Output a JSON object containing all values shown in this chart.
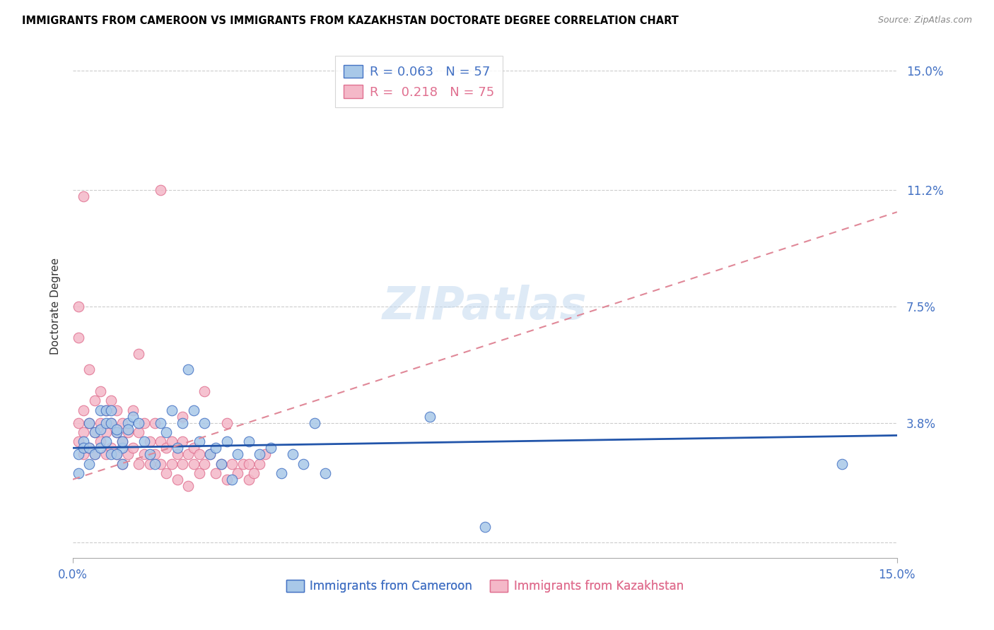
{
  "title": "IMMIGRANTS FROM CAMEROON VS IMMIGRANTS FROM KAZAKHSTAN DOCTORATE DEGREE CORRELATION CHART",
  "source": "Source: ZipAtlas.com",
  "ylabel": "Doctorate Degree",
  "xmin": 0.0,
  "xmax": 0.15,
  "ymin": -0.005,
  "ymax": 0.155,
  "yticks": [
    0.0,
    0.038,
    0.075,
    0.112,
    0.15
  ],
  "ytick_labels": [
    "",
    "3.8%",
    "7.5%",
    "11.2%",
    "15.0%"
  ],
  "xticks": [
    0.0,
    0.15
  ],
  "xtick_labels": [
    "0.0%",
    "15.0%"
  ],
  "legend_label1": "Immigrants from Cameroon",
  "legend_label2": "Immigrants from Kazakhstan",
  "color_cameroon_fill": "#A8C8E8",
  "color_cameroon_edge": "#4472C4",
  "color_kazakhstan_fill": "#F4B8C8",
  "color_kazakhstan_edge": "#E07090",
  "color_blue_line": "#2255AA",
  "color_pink_line": "#E08898",
  "color_axis_labels": "#4472C4",
  "background": "#FFFFFF",
  "cam_trend_x0": 0.0,
  "cam_trend_x1": 0.15,
  "cam_trend_y0": 0.03,
  "cam_trend_y1": 0.034,
  "kaz_trend_x0": 0.0,
  "kaz_trend_x1": 0.15,
  "kaz_trend_y0": 0.02,
  "kaz_trend_y1": 0.105,
  "cameroon_x": [
    0.001,
    0.002,
    0.003,
    0.001,
    0.003,
    0.002,
    0.004,
    0.005,
    0.003,
    0.004,
    0.005,
    0.006,
    0.005,
    0.006,
    0.007,
    0.006,
    0.007,
    0.008,
    0.007,
    0.008,
    0.009,
    0.008,
    0.009,
    0.01,
    0.009,
    0.01,
    0.011,
    0.012,
    0.013,
    0.014,
    0.015,
    0.016,
    0.017,
    0.018,
    0.019,
    0.02,
    0.021,
    0.022,
    0.023,
    0.024,
    0.025,
    0.026,
    0.027,
    0.028,
    0.029,
    0.03,
    0.032,
    0.034,
    0.036,
    0.038,
    0.04,
    0.042,
    0.044,
    0.046,
    0.065,
    0.075,
    0.14
  ],
  "cameroon_y": [
    0.028,
    0.032,
    0.038,
    0.022,
    0.025,
    0.03,
    0.035,
    0.042,
    0.03,
    0.028,
    0.036,
    0.038,
    0.03,
    0.042,
    0.038,
    0.032,
    0.028,
    0.035,
    0.042,
    0.036,
    0.03,
    0.028,
    0.032,
    0.038,
    0.025,
    0.036,
    0.04,
    0.038,
    0.032,
    0.028,
    0.025,
    0.038,
    0.035,
    0.042,
    0.03,
    0.038,
    0.055,
    0.042,
    0.032,
    0.038,
    0.028,
    0.03,
    0.025,
    0.032,
    0.02,
    0.028,
    0.032,
    0.028,
    0.03,
    0.022,
    0.028,
    0.025,
    0.038,
    0.022,
    0.04,
    0.005,
    0.025
  ],
  "kazakhstan_x": [
    0.001,
    0.001,
    0.001,
    0.002,
    0.002,
    0.002,
    0.003,
    0.003,
    0.003,
    0.004,
    0.004,
    0.004,
    0.005,
    0.005,
    0.005,
    0.006,
    0.006,
    0.006,
    0.007,
    0.007,
    0.007,
    0.008,
    0.008,
    0.008,
    0.009,
    0.009,
    0.009,
    0.01,
    0.01,
    0.011,
    0.011,
    0.012,
    0.012,
    0.013,
    0.013,
    0.014,
    0.014,
    0.015,
    0.015,
    0.016,
    0.016,
    0.017,
    0.017,
    0.018,
    0.018,
    0.019,
    0.019,
    0.02,
    0.02,
    0.021,
    0.021,
    0.022,
    0.022,
    0.023,
    0.023,
    0.024,
    0.025,
    0.026,
    0.027,
    0.028,
    0.029,
    0.03,
    0.031,
    0.032,
    0.033,
    0.034,
    0.035,
    0.012,
    0.016,
    0.02,
    0.024,
    0.028,
    0.032,
    0.001,
    0.002
  ],
  "kazakhstan_y": [
    0.032,
    0.038,
    0.065,
    0.028,
    0.035,
    0.042,
    0.03,
    0.038,
    0.055,
    0.028,
    0.035,
    0.045,
    0.032,
    0.038,
    0.048,
    0.028,
    0.035,
    0.042,
    0.03,
    0.038,
    0.045,
    0.028,
    0.035,
    0.042,
    0.025,
    0.032,
    0.038,
    0.028,
    0.035,
    0.03,
    0.042,
    0.025,
    0.035,
    0.028,
    0.038,
    0.025,
    0.032,
    0.028,
    0.038,
    0.025,
    0.032,
    0.022,
    0.03,
    0.025,
    0.032,
    0.02,
    0.028,
    0.025,
    0.032,
    0.018,
    0.028,
    0.025,
    0.03,
    0.022,
    0.028,
    0.025,
    0.028,
    0.022,
    0.025,
    0.02,
    0.025,
    0.022,
    0.025,
    0.02,
    0.022,
    0.025,
    0.028,
    0.06,
    0.112,
    0.04,
    0.048,
    0.038,
    0.025,
    0.075,
    0.11
  ]
}
